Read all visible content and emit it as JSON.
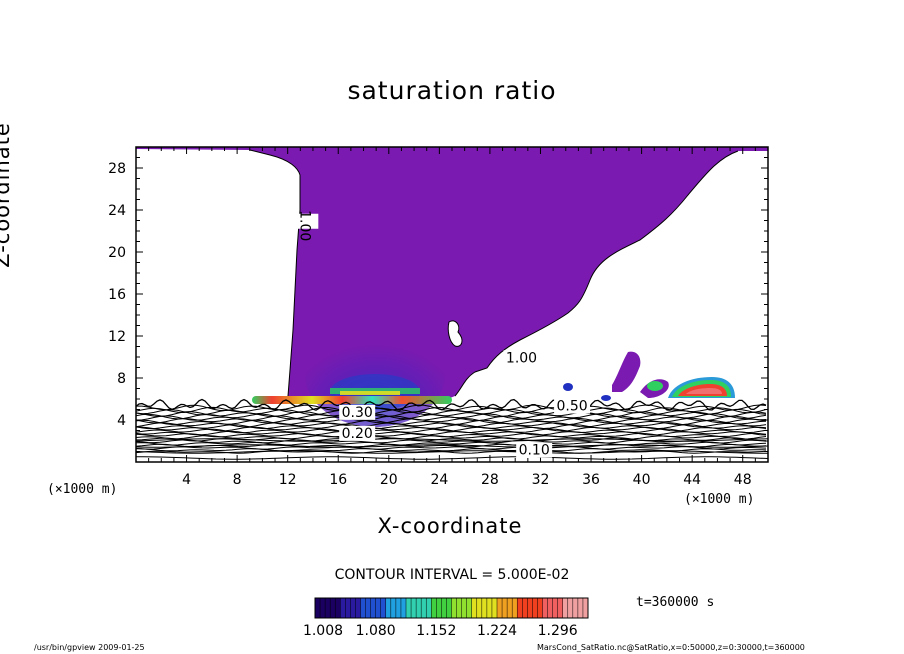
{
  "chart_data": {
    "type": "contour",
    "title": "saturation ratio",
    "xlabel": "X-coordinate",
    "ylabel": "Z-coordinate",
    "x_unit": "(×1000 m)",
    "y_unit": "(×1000 m)",
    "xlim": [
      0,
      50
    ],
    "ylim": [
      0,
      30
    ],
    "x_ticks": [
      4,
      8,
      12,
      16,
      20,
      24,
      28,
      32,
      36,
      40,
      44,
      48
    ],
    "y_ticks": [
      4,
      8,
      12,
      16,
      20,
      24,
      28
    ],
    "contour_labels": [
      {
        "value": "1.00",
        "x": 13.0,
        "z": 22.5
      },
      {
        "value": "1.00",
        "x": 30.5,
        "z": 9.5
      },
      {
        "value": "0.50",
        "x": 34.5,
        "z": 4.9
      },
      {
        "value": "0.30",
        "x": 17.5,
        "z": 4.3
      },
      {
        "value": "0.20",
        "x": 17.5,
        "z": 2.3
      },
      {
        "value": "0.10",
        "x": 31.5,
        "z": 0.7
      }
    ],
    "contour_interval": "CONTOUR INTERVAL = 5.000E-02",
    "colorbar": {
      "min": 1.008,
      "max": 1.332,
      "tick_labels": [
        "1.008",
        "1.080",
        "1.152",
        "1.224",
        "1.296"
      ],
      "colors": [
        "#1a0060",
        "#2a1aa0",
        "#2050d0",
        "#20a0e0",
        "#30d0b0",
        "#40d040",
        "#90e030",
        "#e0e020",
        "#f0a020",
        "#f04020",
        "#f06060",
        "#f0a0a0"
      ]
    },
    "fill_colors": {
      "supersaturated": "#7a1ab0",
      "strong": "#f04030",
      "mid": "#30e060",
      "low": "#2030c0"
    },
    "time": "t=360000 s"
  },
  "footer": {
    "left": "/usr/bin/gpview   2009-01-25",
    "right": "MarsCond_SatRatio.nc@SatRatio,x=0:50000,z=0:30000,t=360000"
  }
}
